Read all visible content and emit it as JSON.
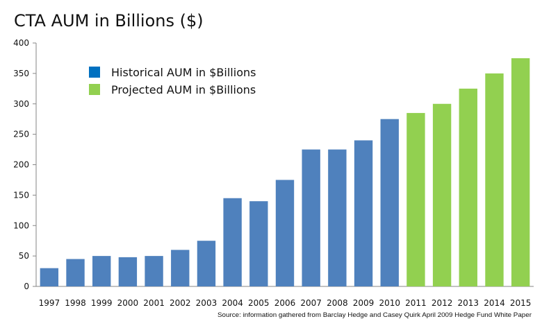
{
  "chart_data": {
    "type": "bar",
    "title": "CTA AUM in Billions ($)",
    "xlabel": "",
    "ylabel": "",
    "ylim": [
      0,
      400
    ],
    "yticks": [
      0,
      50,
      100,
      150,
      200,
      250,
      300,
      350,
      400
    ],
    "grid": false,
    "legend_position": "top-left",
    "categories": [
      "1997",
      "1998",
      "1999",
      "2000",
      "2001",
      "2002",
      "2003",
      "2004",
      "2005",
      "2006",
      "2007",
      "2008",
      "2009",
      "2010",
      "2011",
      "2012",
      "2013",
      "2014",
      "2015"
    ],
    "series": [
      {
        "name": "Historical AUM in $Billions",
        "color": "#4f81bd",
        "legend_color": "#0070c0",
        "values": [
          30,
          45,
          50,
          48,
          50,
          60,
          75,
          145,
          140,
          175,
          225,
          225,
          240,
          275,
          null,
          null,
          null,
          null,
          null
        ]
      },
      {
        "name": "Projected AUM in $Billions",
        "color": "#92d050",
        "legend_color": "#92d050",
        "values": [
          null,
          null,
          null,
          null,
          null,
          null,
          null,
          null,
          null,
          null,
          null,
          null,
          null,
          null,
          285,
          300,
          325,
          350,
          375
        ]
      }
    ],
    "source": "Source: information gathered from Barclay Hedge and Casey Quirk April 2009 Hedge Fund White Paper"
  }
}
